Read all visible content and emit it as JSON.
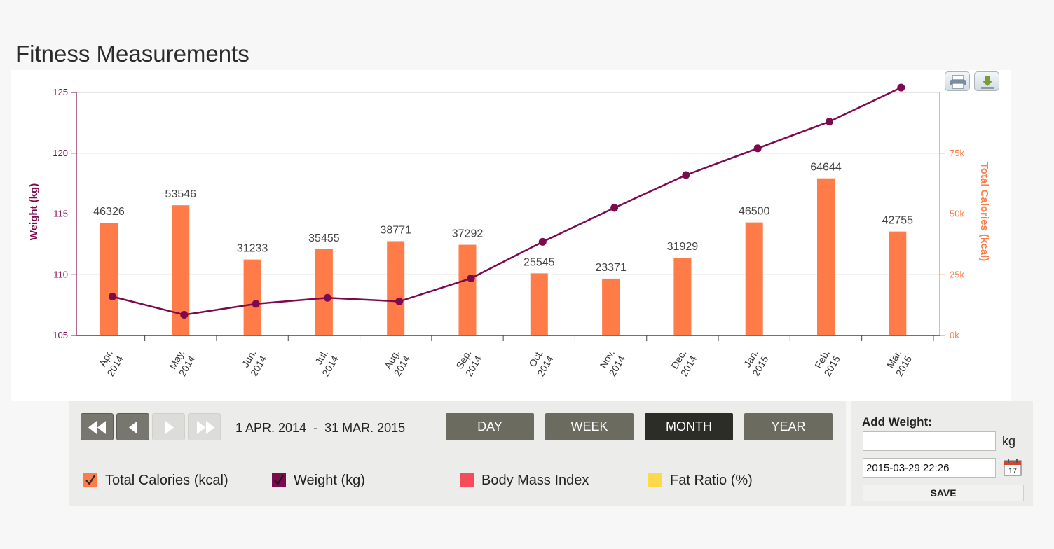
{
  "page": {
    "title": "Fitness Measurements"
  },
  "toolbar": {
    "print_icon": "print-icon",
    "download_icon": "download-icon"
  },
  "colors": {
    "weight": "#7b0a4f",
    "calories": "#ff7b48",
    "bmi": "#f44c5a",
    "fat_ratio": "#fdd94c",
    "grid": "#cccccc"
  },
  "chart_data": {
    "type": "bar",
    "categories": [
      [
        "Apr.",
        "2014"
      ],
      [
        "May.",
        "2014"
      ],
      [
        "Jun.",
        "2014"
      ],
      [
        "Jul.",
        "2014"
      ],
      [
        "Aug.",
        "2014"
      ],
      [
        "Sep.",
        "2014"
      ],
      [
        "Oct.",
        "2014"
      ],
      [
        "Nov.",
        "2014"
      ],
      [
        "Dec.",
        "2014"
      ],
      [
        "Jan.",
        "2015"
      ],
      [
        "Feb.",
        "2015"
      ],
      [
        "Mar.",
        "2015"
      ]
    ],
    "series": [
      {
        "name": "Total Calories (kcal)",
        "type": "bar",
        "axis": "right",
        "values": [
          46326,
          53546,
          31233,
          35455,
          38771,
          37292,
          25545,
          23371,
          31929,
          46500,
          64644,
          42755
        ]
      },
      {
        "name": "Weight (kg)",
        "type": "line",
        "axis": "left",
        "values": [
          108.2,
          106.7,
          107.6,
          108.1,
          107.8,
          109.7,
          112.7,
          115.5,
          118.2,
          120.4,
          122.6,
          125.4
        ]
      }
    ],
    "left_axis": {
      "label": "Weight (kg)",
      "ticks": [
        "105",
        "110",
        "115",
        "120",
        "125"
      ],
      "min": 105,
      "max": 125
    },
    "right_axis": {
      "label": "Total Calories (kcal)",
      "ticks": [
        "0k",
        "25k",
        "50k",
        "75k"
      ],
      "min": 0,
      "max": 100000
    },
    "grid": true
  },
  "controls": {
    "first_icon": "double-left-arrow-icon",
    "prev_icon": "left-arrow-icon",
    "next_icon": "right-arrow-icon",
    "last_icon": "double-right-arrow-icon",
    "date_range": "1 APR. 2014  -  31 MAR. 2015",
    "periods": [
      "DAY",
      "WEEK",
      "MONTH",
      "YEAR"
    ],
    "active_period": "MONTH",
    "legend": [
      {
        "label": "Total Calories (kcal)",
        "checked": true
      },
      {
        "label": "Weight (kg)",
        "checked": true
      },
      {
        "label": "Body Mass Index",
        "checked": false
      },
      {
        "label": "Fat Ratio (%)",
        "checked": false
      }
    ]
  },
  "add_weight": {
    "label": "Add Weight:",
    "weight_value": "",
    "unit": "kg",
    "date_value": "2015-03-29 22:26",
    "calendar_icon": "calendar-icon",
    "calendar_day": "17",
    "save_label": "SAVE"
  }
}
